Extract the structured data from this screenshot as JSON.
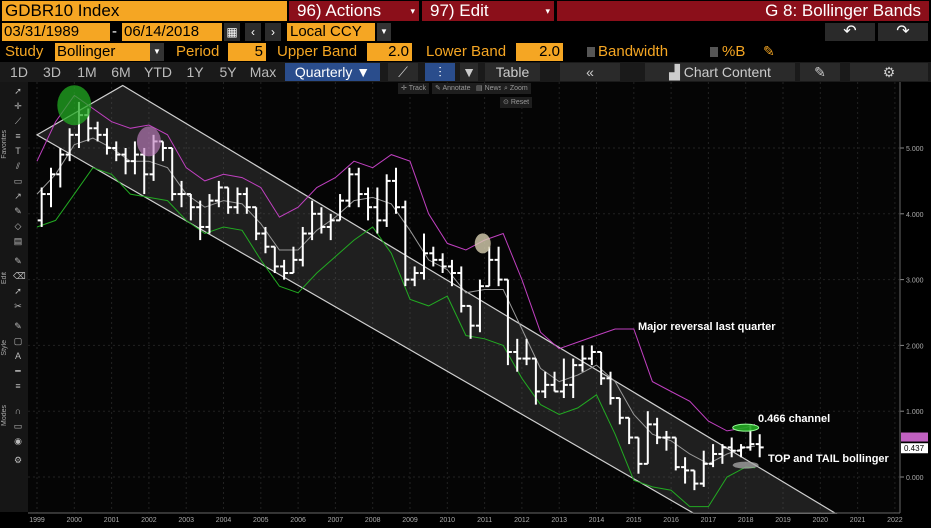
{
  "header": {
    "ticker": "GDBR10 Index",
    "actions": "96) Actions",
    "edit": "97) Edit",
    "title": "G 8: Bollinger Bands"
  },
  "range": {
    "start": "03/31/1989",
    "sep": "-",
    "end": "06/14/2018",
    "currency": "Local CCY"
  },
  "study": {
    "study_label": "Study",
    "study_value": "Bollinger",
    "period_label": "Period",
    "period_value": "5",
    "upper_label": "Upper Band",
    "upper_value": "2.0",
    "lower_label": "Lower Band",
    "lower_value": "2.0",
    "bandwidth_label": "Bandwidth",
    "pctb_label": "%B"
  },
  "tabs": [
    "1D",
    "3D",
    "1M",
    "6M",
    "YTD",
    "1Y",
    "5Y",
    "Max"
  ],
  "frequency": "Quarterly",
  "table_label": "Table",
  "chart_content": "Chart Content",
  "tools": [
    "Track",
    "Annotate",
    "News",
    "Zoom",
    "Reset"
  ],
  "sidebar_labels": [
    "Favorites",
    "Edit",
    "Style",
    "Modes"
  ],
  "colors": {
    "price": "#ffffff",
    "upper_band": "#c040c0",
    "lower_band": "#22aa22",
    "middle_band": "#999999",
    "channel": "#cfcfcf",
    "orange": "#f5a623",
    "red": "#8b0f1a"
  },
  "chart_data": {
    "type": "line",
    "x_ticks": [
      "1999",
      "2000",
      "2001",
      "2002",
      "2003",
      "2004",
      "2005",
      "2006",
      "2007",
      "2008",
      "2009",
      "2010",
      "2011",
      "2012",
      "2013",
      "2014",
      "2015",
      "2016",
      "2017",
      "2018",
      "2019",
      "2020",
      "2021",
      "2022"
    ],
    "y_ticks": [
      "5.000",
      "4.000",
      "3.000",
      "2.000",
      "1.000",
      "0.000"
    ],
    "ylim": [
      -0.3,
      5.9
    ],
    "last_value": "0.437",
    "annotations": {
      "reversal": "Major reversal last quarter",
      "channel": "0.466 channel",
      "bollinger": "TOP and TAIL bollinger"
    },
    "series": [
      {
        "role": "price",
        "quarters": [
          [
            1999.0,
            3.9,
            4.4,
            3.8,
            4.3
          ],
          [
            1999.25,
            4.3,
            4.7,
            4.1,
            4.6
          ],
          [
            1999.5,
            4.6,
            5.0,
            4.4,
            4.9
          ],
          [
            1999.75,
            4.9,
            5.3,
            4.8,
            5.2
          ],
          [
            2000.0,
            5.2,
            5.7,
            5.0,
            5.5
          ],
          [
            2000.25,
            5.5,
            5.6,
            5.1,
            5.3
          ],
          [
            2000.5,
            5.3,
            5.4,
            5.1,
            5.2
          ],
          [
            2000.75,
            5.2,
            5.3,
            4.9,
            5.0
          ],
          [
            2001.0,
            5.0,
            5.1,
            4.8,
            4.9
          ],
          [
            2001.25,
            4.9,
            5.0,
            4.6,
            4.8
          ],
          [
            2001.5,
            4.8,
            5.1,
            4.6,
            4.9
          ],
          [
            2001.75,
            4.9,
            5.0,
            4.3,
            4.6
          ],
          [
            2002.0,
            4.6,
            5.2,
            4.5,
            5.1
          ],
          [
            2002.25,
            5.1,
            5.1,
            4.8,
            5.0
          ],
          [
            2002.5,
            5.0,
            5.0,
            4.2,
            4.3
          ],
          [
            2002.75,
            4.3,
            4.5,
            4.1,
            4.3
          ],
          [
            2003.0,
            4.3,
            4.3,
            3.9,
            4.1
          ],
          [
            2003.25,
            4.1,
            4.2,
            3.6,
            3.8
          ],
          [
            2003.5,
            3.8,
            4.3,
            3.7,
            4.2
          ],
          [
            2003.75,
            4.2,
            4.5,
            4.1,
            4.4
          ],
          [
            2004.0,
            4.4,
            4.4,
            4.0,
            4.1
          ],
          [
            2004.25,
            4.1,
            4.4,
            4.0,
            4.3
          ],
          [
            2004.5,
            4.3,
            4.4,
            4.0,
            4.1
          ],
          [
            2004.75,
            4.1,
            4.1,
            3.6,
            3.7
          ],
          [
            2005.0,
            3.7,
            3.8,
            3.4,
            3.5
          ],
          [
            2005.25,
            3.5,
            3.5,
            3.1,
            3.2
          ],
          [
            2005.5,
            3.2,
            3.3,
            3.0,
            3.1
          ],
          [
            2005.75,
            3.1,
            3.5,
            3.1,
            3.3
          ],
          [
            2006.0,
            3.3,
            3.8,
            3.2,
            3.7
          ],
          [
            2006.25,
            3.7,
            4.2,
            3.6,
            4.0
          ],
          [
            2006.5,
            4.0,
            4.1,
            3.7,
            3.8
          ],
          [
            2006.75,
            3.8,
            4.0,
            3.6,
            3.9
          ],
          [
            2007.0,
            3.9,
            4.3,
            3.9,
            4.2
          ],
          [
            2007.25,
            4.2,
            4.7,
            4.1,
            4.6
          ],
          [
            2007.5,
            4.6,
            4.7,
            4.1,
            4.3
          ],
          [
            2007.75,
            4.3,
            4.4,
            3.9,
            4.1
          ],
          [
            2008.0,
            4.1,
            4.4,
            3.7,
            3.9
          ],
          [
            2008.25,
            3.9,
            4.6,
            3.8,
            4.5
          ],
          [
            2008.5,
            4.5,
            4.7,
            4.0,
            4.1
          ],
          [
            2008.75,
            4.1,
            4.2,
            2.9,
            3.0
          ],
          [
            2009.0,
            3.0,
            3.2,
            2.9,
            3.1
          ],
          [
            2009.25,
            3.1,
            3.7,
            3.0,
            3.4
          ],
          [
            2009.5,
            3.4,
            3.5,
            3.2,
            3.3
          ],
          [
            2009.75,
            3.3,
            3.4,
            3.1,
            3.2
          ],
          [
            2010.0,
            3.2,
            3.3,
            2.9,
            3.1
          ],
          [
            2010.25,
            3.1,
            3.2,
            2.5,
            2.6
          ],
          [
            2010.5,
            2.6,
            2.6,
            2.1,
            2.3
          ],
          [
            2010.75,
            2.3,
            3.0,
            2.2,
            2.9
          ],
          [
            2011.0,
            2.9,
            3.5,
            2.9,
            3.3
          ],
          [
            2011.25,
            3.3,
            3.5,
            2.9,
            3.0
          ],
          [
            2011.5,
            3.0,
            3.0,
            1.7,
            1.9
          ],
          [
            2011.75,
            1.9,
            2.1,
            1.6,
            1.8
          ],
          [
            2012.0,
            1.8,
            2.1,
            1.7,
            1.8
          ],
          [
            2012.25,
            1.8,
            1.8,
            1.1,
            1.3
          ],
          [
            2012.5,
            1.3,
            1.6,
            1.2,
            1.4
          ],
          [
            2012.75,
            1.4,
            1.6,
            1.3,
            1.3
          ],
          [
            2013.0,
            1.3,
            1.8,
            1.2,
            1.4
          ],
          [
            2013.25,
            1.4,
            1.8,
            1.2,
            1.7
          ],
          [
            2013.5,
            1.7,
            2.0,
            1.6,
            1.8
          ],
          [
            2013.75,
            1.8,
            2.0,
            1.7,
            1.9
          ],
          [
            2014.0,
            1.9,
            1.9,
            1.4,
            1.5
          ],
          [
            2014.25,
            1.5,
            1.6,
            1.1,
            1.2
          ],
          [
            2014.5,
            1.2,
            1.2,
            0.8,
            0.9
          ],
          [
            2014.75,
            0.9,
            0.9,
            0.5,
            0.6
          ],
          [
            2015.0,
            0.6,
            0.6,
            0.05,
            0.2
          ],
          [
            2015.25,
            0.2,
            1.0,
            0.2,
            0.8
          ],
          [
            2015.5,
            0.8,
            0.9,
            0.5,
            0.6
          ],
          [
            2015.75,
            0.6,
            0.7,
            0.4,
            0.6
          ],
          [
            2016.0,
            0.6,
            0.6,
            0.1,
            0.15
          ],
          [
            2016.25,
            0.15,
            0.3,
            -0.1,
            0.1
          ],
          [
            2016.5,
            0.1,
            0.1,
            -0.2,
            -0.1
          ],
          [
            2016.75,
            -0.1,
            0.4,
            -0.15,
            0.2
          ],
          [
            2017.0,
            0.2,
            0.5,
            0.15,
            0.35
          ],
          [
            2017.25,
            0.35,
            0.5,
            0.2,
            0.45
          ],
          [
            2017.5,
            0.45,
            0.6,
            0.3,
            0.4
          ],
          [
            2017.75,
            0.4,
            0.5,
            0.3,
            0.45
          ],
          [
            2018.0,
            0.45,
            0.8,
            0.4,
            0.5
          ],
          [
            2018.25,
            0.5,
            0.65,
            0.3,
            0.45
          ]
        ]
      },
      {
        "role": "upper",
        "points": [
          [
            1999.0,
            4.8
          ],
          [
            1999.5,
            5.4
          ],
          [
            2000.0,
            5.8
          ],
          [
            2000.5,
            5.6
          ],
          [
            2001.0,
            5.4
          ],
          [
            2001.5,
            5.3
          ],
          [
            2002.0,
            5.35
          ],
          [
            2002.5,
            5.2
          ],
          [
            2003.0,
            4.7
          ],
          [
            2003.5,
            4.5
          ],
          [
            2004.0,
            4.6
          ],
          [
            2004.5,
            4.55
          ],
          [
            2005.0,
            4.4
          ],
          [
            2005.5,
            3.95
          ],
          [
            2006.0,
            4.1
          ],
          [
            2006.5,
            4.4
          ],
          [
            2007.0,
            4.55
          ],
          [
            2007.5,
            4.8
          ],
          [
            2008.0,
            4.7
          ],
          [
            2008.5,
            4.9
          ],
          [
            2009.0,
            4.8
          ],
          [
            2009.5,
            4.0
          ],
          [
            2010.0,
            3.55
          ],
          [
            2010.5,
            3.45
          ],
          [
            2011.0,
            3.6
          ],
          [
            2011.5,
            3.7
          ],
          [
            2012.0,
            3.0
          ],
          [
            2012.5,
            2.2
          ],
          [
            2013.0,
            1.95
          ],
          [
            2013.5,
            2.05
          ],
          [
            2014.0,
            2.15
          ],
          [
            2014.5,
            2.25
          ],
          [
            2015.0,
            2.25
          ],
          [
            2015.5,
            1.45
          ],
          [
            2016.0,
            1.3
          ],
          [
            2016.5,
            1.15
          ],
          [
            2017.0,
            0.85
          ],
          [
            2017.5,
            0.7
          ],
          [
            2018.0,
            0.75
          ],
          [
            2018.25,
            0.8
          ]
        ]
      },
      {
        "role": "middle",
        "points": [
          [
            1999.0,
            4.3
          ],
          [
            1999.5,
            4.6
          ],
          [
            2000.0,
            5.05
          ],
          [
            2000.5,
            5.15
          ],
          [
            2001.0,
            5.0
          ],
          [
            2001.5,
            4.8
          ],
          [
            2002.0,
            4.8
          ],
          [
            2002.5,
            4.7
          ],
          [
            2003.0,
            4.3
          ],
          [
            2003.5,
            4.1
          ],
          [
            2004.0,
            4.2
          ],
          [
            2004.5,
            4.15
          ],
          [
            2005.0,
            3.85
          ],
          [
            2005.5,
            3.45
          ],
          [
            2006.0,
            3.45
          ],
          [
            2006.5,
            3.75
          ],
          [
            2007.0,
            3.95
          ],
          [
            2007.5,
            4.2
          ],
          [
            2008.0,
            4.25
          ],
          [
            2008.5,
            4.15
          ],
          [
            2009.0,
            3.75
          ],
          [
            2009.5,
            3.3
          ],
          [
            2010.0,
            3.15
          ],
          [
            2010.5,
            2.8
          ],
          [
            2011.0,
            2.85
          ],
          [
            2011.5,
            2.85
          ],
          [
            2012.0,
            2.25
          ],
          [
            2012.5,
            1.65
          ],
          [
            2013.0,
            1.45
          ],
          [
            2013.5,
            1.55
          ],
          [
            2014.0,
            1.7
          ],
          [
            2014.5,
            1.45
          ],
          [
            2015.0,
            0.95
          ],
          [
            2015.5,
            0.65
          ],
          [
            2016.0,
            0.55
          ],
          [
            2016.5,
            0.35
          ],
          [
            2017.0,
            0.2
          ],
          [
            2017.5,
            0.35
          ],
          [
            2018.0,
            0.45
          ],
          [
            2018.25,
            0.47
          ]
        ]
      },
      {
        "role": "lower",
        "points": [
          [
            1999.0,
            3.8
          ],
          [
            1999.5,
            3.9
          ],
          [
            2000.0,
            4.3
          ],
          [
            2000.5,
            4.7
          ],
          [
            2001.0,
            4.6
          ],
          [
            2001.5,
            4.3
          ],
          [
            2002.0,
            4.25
          ],
          [
            2002.5,
            4.2
          ],
          [
            2003.0,
            3.9
          ],
          [
            2003.5,
            3.7
          ],
          [
            2004.0,
            3.8
          ],
          [
            2004.5,
            3.75
          ],
          [
            2005.0,
            3.3
          ],
          [
            2005.5,
            2.9
          ],
          [
            2006.0,
            2.8
          ],
          [
            2006.5,
            3.1
          ],
          [
            2007.0,
            3.35
          ],
          [
            2007.5,
            3.6
          ],
          [
            2008.0,
            3.8
          ],
          [
            2008.5,
            3.4
          ],
          [
            2009.0,
            2.7
          ],
          [
            2009.5,
            2.6
          ],
          [
            2010.0,
            2.75
          ],
          [
            2010.5,
            2.15
          ],
          [
            2011.0,
            2.1
          ],
          [
            2011.5,
            2.0
          ],
          [
            2012.0,
            1.5
          ],
          [
            2012.5,
            1.1
          ],
          [
            2013.0,
            0.95
          ],
          [
            2013.5,
            1.05
          ],
          [
            2014.0,
            1.25
          ],
          [
            2014.5,
            0.65
          ],
          [
            2015.0,
            -0.05
          ],
          [
            2015.5,
            -0.15
          ],
          [
            2016.0,
            -0.2
          ],
          [
            2016.5,
            -0.45
          ],
          [
            2017.0,
            -0.45
          ],
          [
            2017.5,
            0.0
          ],
          [
            2018.0,
            0.15
          ],
          [
            2018.25,
            0.14
          ]
        ]
      }
    ]
  }
}
